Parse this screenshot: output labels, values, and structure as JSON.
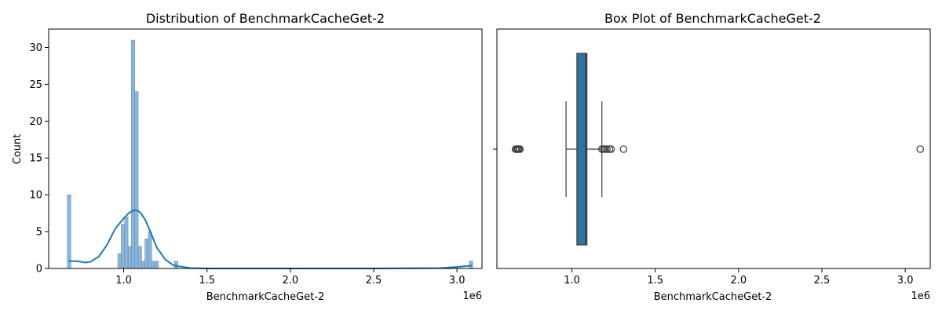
{
  "chart_data": [
    {
      "type": "histogram",
      "title": "Distribution of BenchmarkCacheGet-2",
      "xlabel": "BenchmarkCacheGet-2",
      "ylabel": "Count",
      "x_offset_label": "1e6",
      "xlim": [
        0.55,
        3.15
      ],
      "ylim": [
        0,
        32.5
      ],
      "x_ticks": [
        {
          "value": 1.0,
          "label": "1.0"
        },
        {
          "value": 1.5,
          "label": "1.5"
        },
        {
          "value": 2.0,
          "label": "2.0"
        },
        {
          "value": 2.5,
          "label": "2.5"
        },
        {
          "value": 3.0,
          "label": "3.0"
        }
      ],
      "y_ticks": [
        {
          "value": 0,
          "label": "0"
        },
        {
          "value": 5,
          "label": "5"
        },
        {
          "value": 10,
          "label": "10"
        },
        {
          "value": 15,
          "label": "15"
        },
        {
          "value": 20,
          "label": "20"
        },
        {
          "value": 25,
          "label": "25"
        },
        {
          "value": 30,
          "label": "30"
        }
      ],
      "bin_width": 0.0203,
      "bars": [
        {
          "x0": 0.6625,
          "count": 10
        },
        {
          "x0": 0.9653,
          "count": 2
        },
        {
          "x0": 0.9856,
          "count": 6
        },
        {
          "x0": 1.0059,
          "count": 7
        },
        {
          "x0": 1.0262,
          "count": 3
        },
        {
          "x0": 1.0465,
          "count": 31
        },
        {
          "x0": 1.0668,
          "count": 24
        },
        {
          "x0": 1.0871,
          "count": 3
        },
        {
          "x0": 1.1074,
          "count": 1
        },
        {
          "x0": 1.1277,
          "count": 4
        },
        {
          "x0": 1.148,
          "count": 5
        },
        {
          "x0": 1.1683,
          "count": 1
        },
        {
          "x0": 1.1886,
          "count": 1
        },
        {
          "x0": 1.3048,
          "count": 1
        },
        {
          "x0": 3.074,
          "count": 1
        }
      ],
      "kde": {
        "x": [
          0.67,
          0.72,
          0.77,
          0.8,
          0.85,
          0.9,
          0.95,
          1.0,
          1.03,
          1.06,
          1.08,
          1.1,
          1.13,
          1.16,
          1.2,
          1.25,
          1.3,
          1.4,
          1.5,
          2.0,
          2.5,
          2.9,
          3.0,
          3.09
        ],
        "y": [
          1.0,
          1.0,
          0.8,
          0.9,
          1.6,
          3.2,
          5.4,
          6.8,
          7.5,
          7.9,
          7.9,
          7.6,
          6.6,
          5.0,
          2.8,
          1.2,
          0.4,
          0.05,
          0.0,
          0.0,
          0.0,
          0.05,
          0.2,
          0.4
        ]
      },
      "bar_color": "#8bb6d9",
      "bar_edge_color": "#5f8eb5",
      "line_color": "#1f77b4"
    },
    {
      "type": "box",
      "title": "Box Plot of BenchmarkCacheGet-2",
      "xlabel": "BenchmarkCacheGet-2",
      "x_offset_label": "1e6",
      "xlim": [
        0.55,
        3.15
      ],
      "x_ticks": [
        {
          "value": 1.0,
          "label": "1.0"
        },
        {
          "value": 1.5,
          "label": "1.5"
        },
        {
          "value": 2.0,
          "label": "2.0"
        },
        {
          "value": 2.5,
          "label": "2.5"
        },
        {
          "value": 3.0,
          "label": "3.0"
        }
      ],
      "whisker_low": 0.965,
      "q1": 1.03,
      "median": 1.082,
      "q3": 1.09,
      "whisker_high": 1.18,
      "outliers": [
        0.662,
        0.668,
        0.675,
        0.682,
        0.688,
        1.18,
        1.19,
        1.2,
        1.21,
        1.225,
        1.235,
        1.31,
        3.09
      ],
      "box_color": "#3274a1",
      "line_color": "#3a3a3a"
    }
  ]
}
